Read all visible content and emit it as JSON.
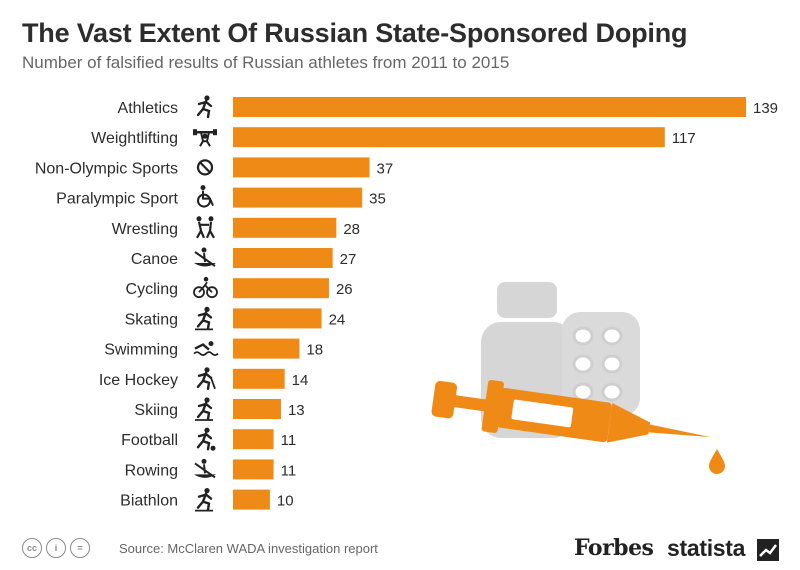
{
  "header": {
    "title": "The Vast Extent Of Russian State-Sponsored Doping",
    "subtitle": "Number of falsified results of Russian athletes from 2011 to 2015"
  },
  "chart_data": {
    "type": "bar",
    "orientation": "horizontal",
    "title": "The Vast Extent Of Russian State-Sponsored Doping",
    "subtitle": "Number of falsified results of Russian athletes from 2011 to 2015",
    "xlabel": "",
    "ylabel": "",
    "categories": [
      "Athletics",
      "Weightlifting",
      "Non-Olympic Sports",
      "Paralympic Sport",
      "Wrestling",
      "Canoe",
      "Cycling",
      "Skating",
      "Swimming",
      "Ice Hockey",
      "Skiing",
      "Football",
      "Rowing",
      "Biathlon"
    ],
    "icons": [
      "runner-icon",
      "weightlifter-icon",
      "prohibited-icon",
      "wheelchair-icon",
      "wrestlers-icon",
      "canoe-icon",
      "cyclist-icon",
      "skater-icon",
      "swimmer-icon",
      "ice-hockey-icon",
      "skier-icon",
      "football-icon",
      "rowing-icon",
      "biathlon-icon"
    ],
    "values": [
      139,
      117,
      37,
      35,
      28,
      27,
      26,
      24,
      18,
      14,
      13,
      11,
      11,
      10
    ],
    "xlim": [
      0,
      139
    ],
    "grid": false,
    "bar_color": "#f08a17"
  },
  "colors": {
    "accent": "#f08a17",
    "illustration": "#d6d6d6",
    "text": "#2d2d2d"
  },
  "footer": {
    "license_icons": [
      "cc-icon",
      "by-icon",
      "nd-icon"
    ],
    "license_labels": [
      "cc",
      "i",
      "="
    ],
    "source": "Source: McClaren WADA investigation report",
    "forbes_logo": "Forbes",
    "statista_logo": "statista"
  }
}
